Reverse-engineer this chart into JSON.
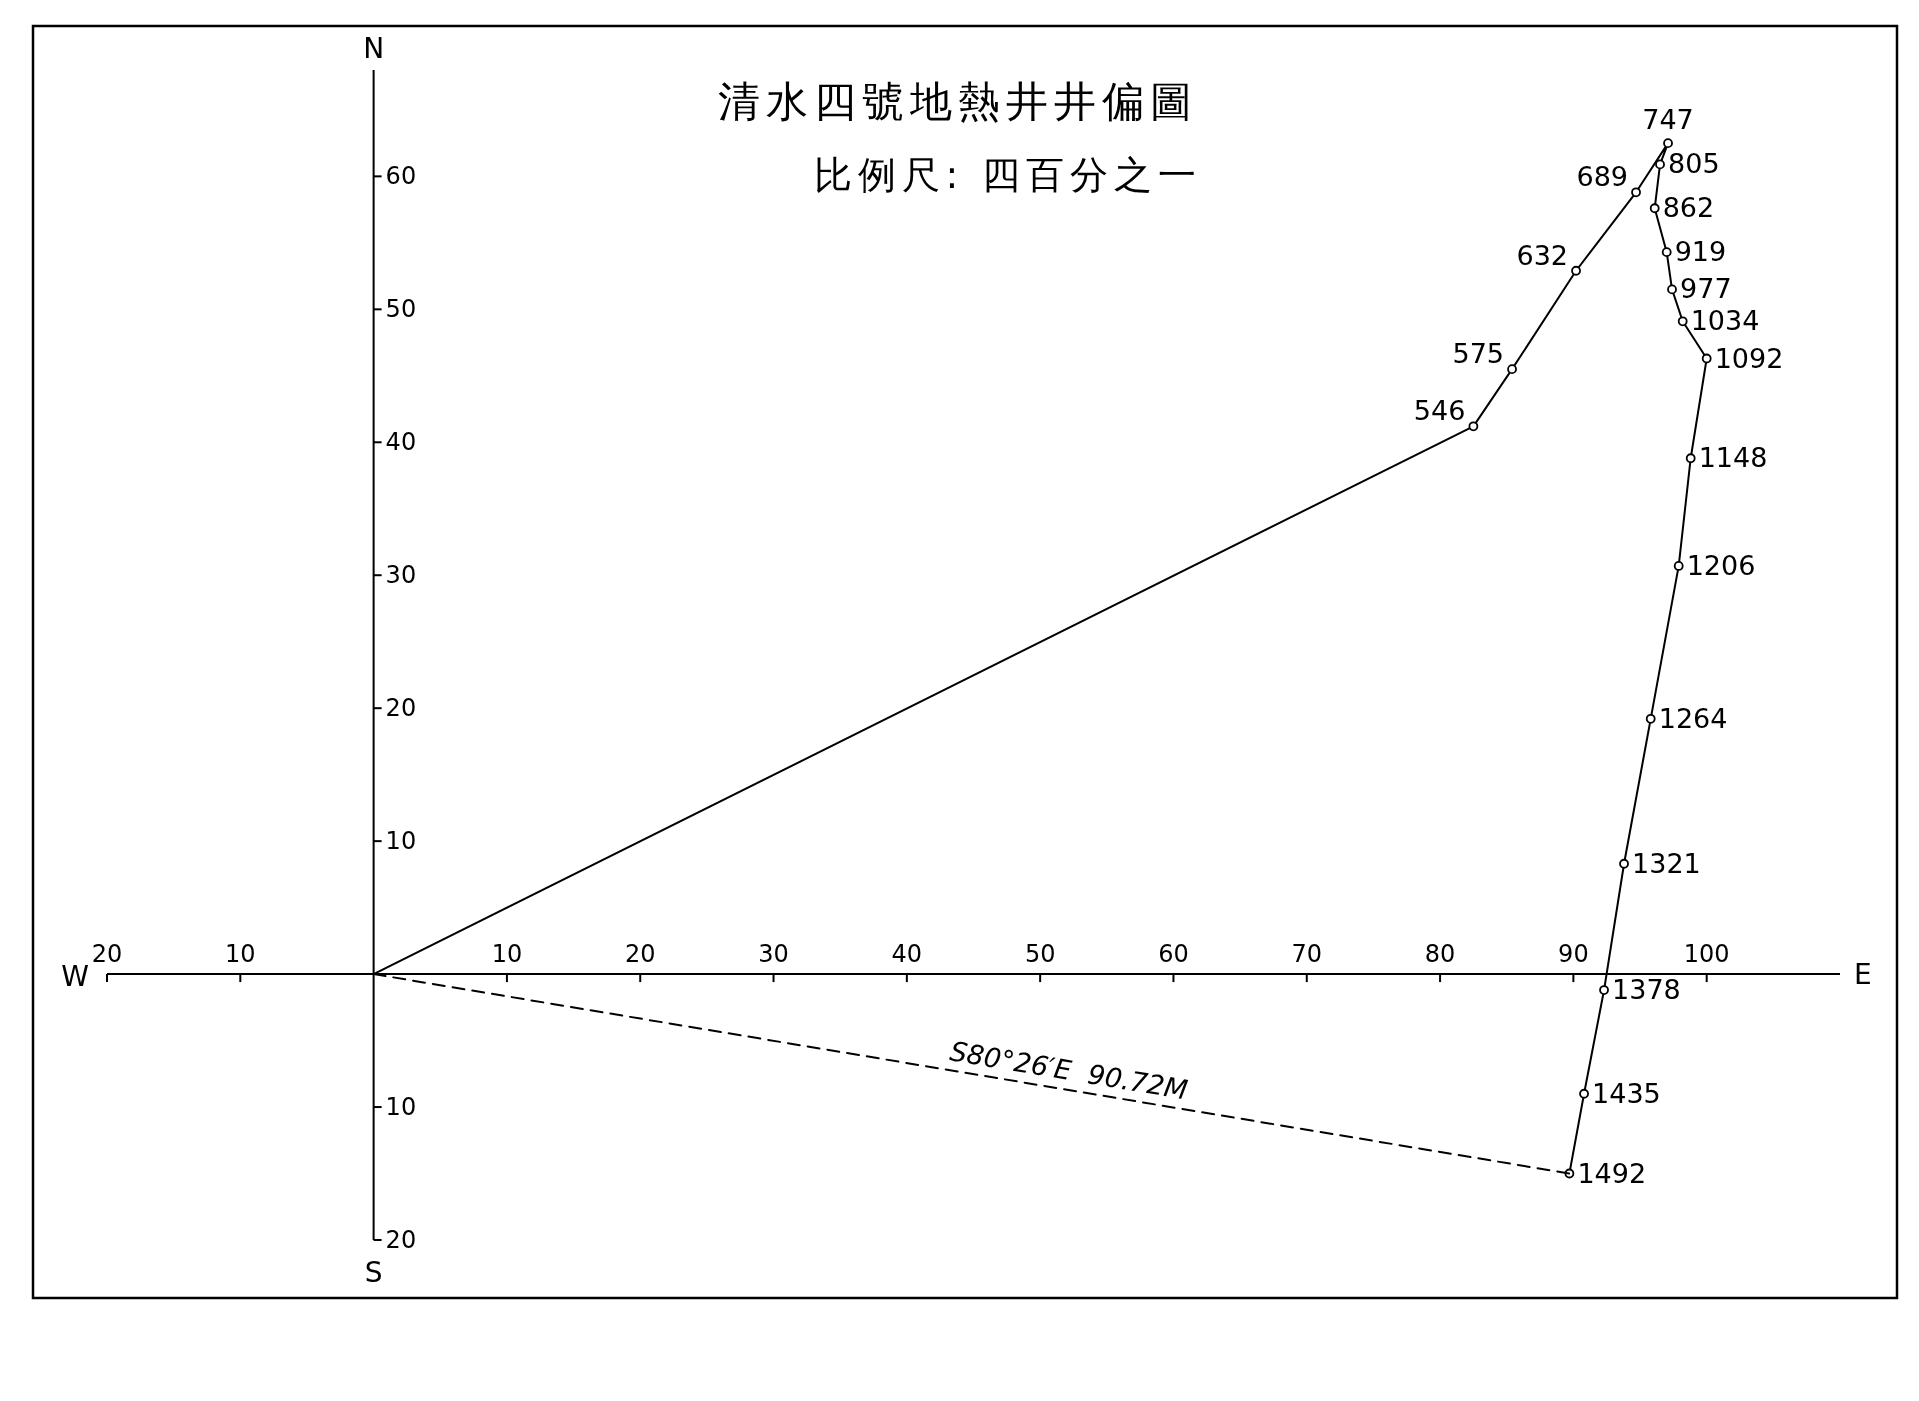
{
  "chart_data": {
    "type": "line",
    "title": "清水四號地熱井井偏圖",
    "subtitle": "比例尺: 四百分之一",
    "xlabel": "E",
    "ylabel": "N",
    "xlim": [
      -20,
      110
    ],
    "ylim": [
      -20,
      68
    ],
    "xticks": [
      {
        "value": -20,
        "label": "20"
      },
      {
        "value": -10,
        "label": "10"
      },
      10,
      20,
      30,
      40,
      50,
      60,
      70,
      80,
      90,
      100
    ],
    "yticks": [
      {
        "value": -20,
        "label": "20"
      },
      {
        "value": -10,
        "label": "10"
      },
      10,
      20,
      30,
      40,
      50,
      60
    ],
    "grid": false,
    "series": [
      {
        "color": "#000000",
        "marker": "circle",
        "line_style": "solid",
        "x": [
          0,
          82.5,
          85.4,
          90.2,
          94.7,
          97.1,
          96.5,
          96.1,
          97.0,
          97.4,
          98.2,
          100.0,
          98.8,
          97.9,
          95.8,
          93.8,
          92.3,
          90.8,
          89.7
        ],
        "values": [
          0,
          41.2,
          45.5,
          52.9,
          58.8,
          62.5,
          60.9,
          57.6,
          54.3,
          51.5,
          49.1,
          46.3,
          38.8,
          30.7,
          19.2,
          8.3,
          -1.2,
          -9.0,
          -15.0
        ]
      },
      {
        "color": "#000000",
        "line_style": "dashed",
        "x": [
          0,
          89.7
        ],
        "values": [
          0,
          -15.0
        ]
      }
    ],
    "annotations": [
      "W",
      "S",
      "S80°26′E  90.72M",
      {
        "text": "546",
        "x": 82.5,
        "y": 41.2
      },
      {
        "text": "575",
        "x": 85.4,
        "y": 45.5
      },
      {
        "text": "632",
        "x": 90.2,
        "y": 52.9
      },
      {
        "text": "689",
        "x": 94.7,
        "y": 58.8
      },
      {
        "text": "747",
        "x": 97.1,
        "y": 62.5
      },
      {
        "text": "805",
        "x": 96.5,
        "y": 60.9
      },
      {
        "text": "862",
        "x": 96.1,
        "y": 57.6
      },
      {
        "text": "919",
        "x": 97.0,
        "y": 54.3
      },
      {
        "text": "977",
        "x": 97.4,
        "y": 51.5
      },
      {
        "text": "1034",
        "x": 98.2,
        "y": 49.1
      },
      {
        "text": "1092",
        "x": 100.0,
        "y": 46.3
      },
      {
        "text": "1148",
        "x": 98.8,
        "y": 38.8
      },
      {
        "text": "1206",
        "x": 97.9,
        "y": 30.7
      },
      {
        "text": "1264",
        "x": 95.8,
        "y": 19.2
      },
      {
        "text": "1321",
        "x": 93.8,
        "y": 8.3
      },
      {
        "text": "1378",
        "x": 92.3,
        "y": -1.2
      },
      {
        "text": "1435",
        "x": 90.8,
        "y": -9.0
      },
      {
        "text": "1492",
        "x": 89.7,
        "y": -15.0
      }
    ]
  }
}
